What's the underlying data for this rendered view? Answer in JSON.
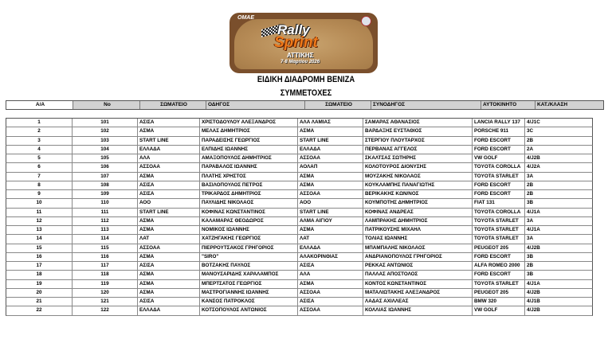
{
  "logo": {
    "org": "OMAE",
    "line1": "Rally",
    "line2": "Sprint",
    "line3": "ΑΤΤΙΚΗΣ",
    "date": "7-8 Μαρτίου 2026"
  },
  "title": "ΕΙΔΙΚΗ ΔΙΑΔΡΟΜΗ ΒΕΝΙΖΑ",
  "subtitle": "ΣΥΜΜΕΤΟΧΕΣ",
  "columns": [
    "Α/Α",
    "No",
    "ΣΩΜΑΤΕΙΟ",
    "ΟΔΗΓΟΣ",
    "ΣΩΜΑΤΕΙΟ",
    "ΣΥΝΟΔΗΓΟΣ",
    "ΑΥΤΟΚΙΝΗΤΟ",
    "ΚΑΤ./ΚΛΑΣΗ"
  ],
  "rows": [
    [
      "1",
      "101",
      "ΑΣΙΣΑ",
      "ΧΡΙΣΤΟΔΟΥΛΟΥ ΑΛΕΞΑΝΔΡΟΣ",
      "ΑΛΑ ΛΑΜΙΑΣ",
      "ΣΑΜΑΡΑΣ ΑΘΑΝΑΣΙΟΣ",
      "LANCIA RALLY 137",
      "4/J1C"
    ],
    [
      "2",
      "102",
      "ΑΣΜΑ",
      "ΜΕΛΑΣ ΔΗΜΗΤΡΙΟΣ",
      "ΑΣΜΑ",
      "ΒΑΡΔΑΞΗΣ ΕΥΣΤΑΘΙΟΣ",
      "PORSCHE 911",
      "3C"
    ],
    [
      "3",
      "103",
      "START LINE",
      "ΠΑΡΑΔΕΙΣΗΣ ΓΕΩΡΓΙΟΣ",
      "START LINE",
      "ΣΤΕΡΓΙΟΥ ΠΛΟΥΤΑΡΧΟΣ",
      "FORD ESCORT",
      "2B"
    ],
    [
      "4",
      "104",
      "ΕΛΛΑΔΑ",
      "ΕΛΠΙΔΗΣ ΙΩΑΝΝΗΣ",
      "ΕΛΛΑΔΑ",
      "ΠΕΡΒΑΝΑΣ ΑΓΓΕΛΟΣ",
      "FORD ESCORT",
      "2A"
    ],
    [
      "5",
      "105",
      "ΑΛΑ",
      "ΑΜΑΞΟΠΟΥΛΟΣ ΔΗΜΗΤΡΙΟΣ",
      "ΑΣΣΟΑΑ",
      "ΣΚΑΛΤΣΑΣ ΣΩΤΗΡΗΣ",
      "VW GOLF",
      "4/J2B"
    ],
    [
      "6",
      "106",
      "ΑΣΣΟΑΑ",
      "ΠΑΡΑΒΑΛΟΣ ΙΩΑΝΝΗΣ",
      "ΑΟΛΑΠ",
      "ΚΟΛΟΤΟΥΡΟΣ ΔΙΟΝΥΣΗΣ",
      "TOYOTA COROLLA",
      "4/J2A"
    ],
    [
      "7",
      "107",
      "ΑΣΜΑ",
      "ΠΛΑΤΗΣ ΧΡΗΣΤΟΣ",
      "ΑΣΜΑ",
      "ΜΟΥΖΑΚΗΣ ΝΙΚΟΛΑΟΣ",
      "TOYOTA STARLET",
      "3A"
    ],
    [
      "8",
      "108",
      "ΑΣΙΣΑ",
      "ΒΑΣΙΛΟΠΟΥΛΟΣ ΠΕΤΡΟΣ",
      "ΑΣΜΑ",
      "ΚΟΥΚΛΑΜΠΗΣ ΠΑΝΑΓΙΩΤΗΣ",
      "FORD ESCORT",
      "2B"
    ],
    [
      "9",
      "109",
      "ΑΣΙΣΑ",
      "ΤΡΙΚΑΡΔΟΣ ΔΗΜΗΤΡΙΟΣ",
      "ΑΣΣΟΑΑ",
      "ΒΕΡΙΚΑΚΗΣ ΚΩΝ/ΝΟΣ",
      "FORD ESCORT",
      "2B"
    ],
    [
      "10",
      "110",
      "ΑΟΟ",
      "ΠΑΥΛΙΔΗΣ ΝΙΚΟΛΑΟΣ",
      "ΑΟΟ",
      "ΚΟΥΜΠΟΤΗΣ ΔΗΜΗΤΡΙΟΣ",
      "FIAT 131",
      "3B"
    ],
    [
      "11",
      "111",
      "START LINE",
      "ΚΟΦΙΝΑΣ ΚΩΝΣΤΑΝΤΙΝΟΣ",
      "START LINE",
      "ΚΟΦΙΝΑΣ ΑΝΔΡΕΑΣ",
      "TOYOTA COROLLA",
      "4/J1A"
    ],
    [
      "12",
      "112",
      "ΑΣΜΑ",
      "ΚΑΛΑΜΑΡΑΣ ΘΕΟΔΩΡΟΣ",
      "ΑΛΜΑ ΑΙΓΙΟΥ",
      "ΛΑΜΠΡΑΚΗΣ ΔΗΜΗΤΡΙΟΣ",
      "TOYOTA STARLET",
      "3A"
    ],
    [
      "13",
      "113",
      "ΑΣΜΑ",
      "ΝΟΜΙΚΟΣ ΙΩΑΝΝΗΣ",
      "ΑΣΜΑ",
      "ΠΑΤΡΙΚΟΥΣΗΣ ΜΙΧΑΗΛ",
      "TOYOTA STARLET",
      "4/J1A"
    ],
    [
      "14",
      "114",
      "ΛΑΤ",
      "ΧΑΤΖΗΓΑΚΗΣ ΓΕΩΡΓΙΟΣ",
      "ΛΑΤ",
      "ΤΟΛΙΑΣ ΙΩΑΝΝΗΣ",
      "TOYOTA STARLET",
      "3A"
    ],
    [
      "15",
      "115",
      "ΑΣΣΟΑΑ",
      "ΠΙΕΡΡΟΥΤΣΑΚΟΣ ΓΡΗΓΟΡΙΟΣ",
      "ΕΛΛΑΔΑ",
      "ΜΠΑΜΠΑΛΗΣ ΝΙΚΟΛΑΟΣ",
      "PEUGEOT 205",
      "4/J2B"
    ],
    [
      "16",
      "116",
      "ΑΣΜΑ",
      "\"SIRO\"",
      "ΑΛΑΚΟΡΙΝΘΙΑΣ",
      "ΑΝΔΡΙΑΝΟΠΟΥΛΟΣ ΓΡΗΓΟΡΙΟΣ",
      "FORD ESCORT",
      "3B"
    ],
    [
      "17",
      "117",
      "ΑΣΙΣΑ",
      "ΒΟΤΖΑΚΗΣ ΠΑΥΛΟΣ",
      "ΑΣΙΣΑ",
      "ΡΕΚΚΑΣ ΑΝΤΩΝΙΟΣ",
      "ALFA ROMEO 2000",
      "2B"
    ],
    [
      "18",
      "118",
      "ΑΣΜΑ",
      "ΜΑΝΟΥΣΑΡΙΔΗΣ ΧΑΡΑΛΑΜΠΟΣ",
      "ΑΛΑ",
      "ΠΑΛΛΑΣ ΑΠΟΣΤΟΛΟΣ",
      "FORD ESCORT",
      "3B"
    ],
    [
      "19",
      "119",
      "ΑΣΜΑ",
      "ΜΠΕΡΤΣΑΤΟΣ ΓΕΩΡΓΙΟΣ",
      "ΑΣΜΑ",
      "ΚΟΝΤΟΣ ΚΩΝΣΤΑΝΤΙΝΟΣ",
      "TOYOTA STARLET",
      "4/J1A"
    ],
    [
      "20",
      "120",
      "ΑΣΜΑ",
      "ΜΑΣΤΡΟΓΙΑΝΝΗΣ ΙΩΑΝΝΗΣ",
      "ΑΣΣΟΑΑ",
      "ΜΑΤΑΛΙΩΤΑΚΗΣ ΑΛΕΞΑΝΔΡΟΣ",
      "PEUGEOT 205",
      "4/J2B"
    ],
    [
      "21",
      "121",
      "ΑΣΙΣΑ",
      "ΚΑΝΣΟΣ ΠΑΤΡΟΚΛΟΣ",
      "ΑΣΙΣΑ",
      "ΛΑΔΑΣ ΑΧΙΛΛΕΑΣ",
      "BMW 320",
      "4/J1B"
    ],
    [
      "22",
      "122",
      "ΕΛΛΑΔΑ",
      "ΚΟΤΣΟΠΟΥΛΟΣ ΑΝΤΩΝΙΟΣ",
      "ΑΣΣΟΑΑ",
      "ΚΟΛΛΙΑΣ ΙΩΑΝΝΗΣ",
      "VW GOLF",
      "4/J2B"
    ]
  ]
}
